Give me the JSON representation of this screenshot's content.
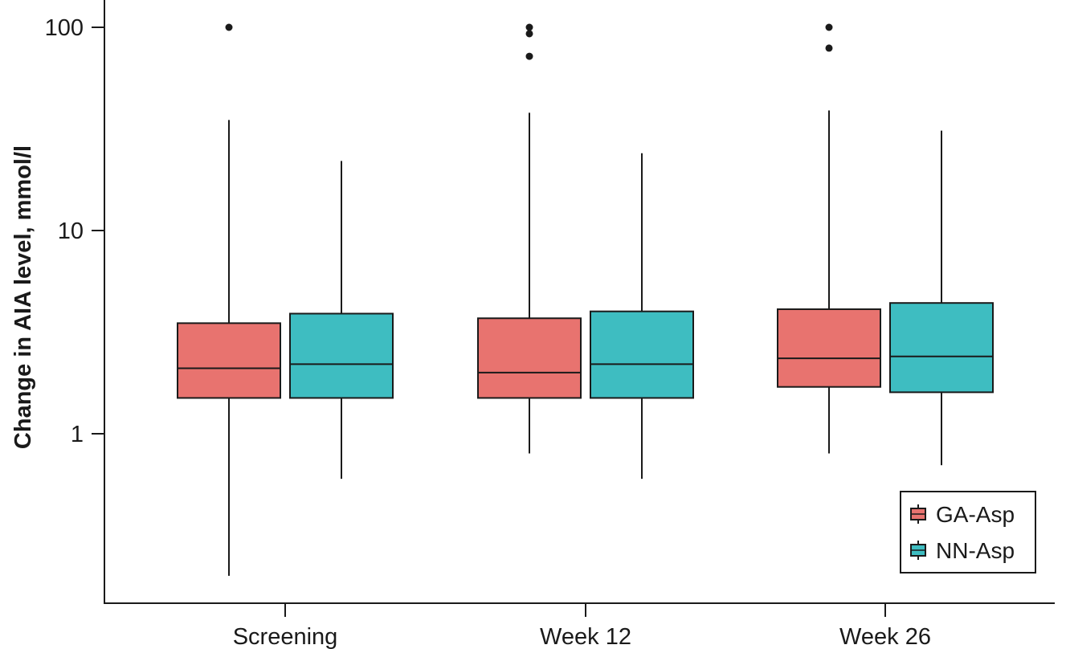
{
  "chart_data": {
    "type": "boxplot",
    "ylabel": "Change in AIA level, mmol/l",
    "xlabel": "",
    "y_scale": "log",
    "ylim": [
      0.16,
      140
    ],
    "y_ticks": [
      {
        "value": 1,
        "label": "1"
      },
      {
        "value": 10,
        "label": "10"
      },
      {
        "value": 100,
        "label": "100"
      }
    ],
    "categories": [
      "Screening",
      "Week 12",
      "Week 26"
    ],
    "legend_position": "bottom-right",
    "series": [
      {
        "name": "GA-Asp",
        "color": "#e8736f",
        "boxes": [
          {
            "whisker_low": 0.2,
            "q1": 1.5,
            "median": 2.1,
            "q3": 3.5,
            "whisker_high": 35,
            "outliers": [
              100
            ]
          },
          {
            "whisker_low": 0.8,
            "q1": 1.5,
            "median": 2.0,
            "q3": 3.7,
            "whisker_high": 38,
            "outliers": [
              100,
              93,
              72
            ]
          },
          {
            "whisker_low": 0.8,
            "q1": 1.7,
            "median": 2.35,
            "q3": 4.1,
            "whisker_high": 39,
            "outliers": [
              100,
              79
            ]
          }
        ]
      },
      {
        "name": "NN-Asp",
        "color": "#3ebdc1",
        "boxes": [
          {
            "whisker_low": 0.6,
            "q1": 1.5,
            "median": 2.2,
            "q3": 3.9,
            "whisker_high": 22,
            "outliers": []
          },
          {
            "whisker_low": 0.6,
            "q1": 1.5,
            "median": 2.2,
            "q3": 4.0,
            "whisker_high": 24,
            "outliers": []
          },
          {
            "whisker_low": 0.7,
            "q1": 1.6,
            "median": 2.4,
            "q3": 4.4,
            "whisker_high": 31,
            "outliers": []
          }
        ]
      }
    ]
  }
}
